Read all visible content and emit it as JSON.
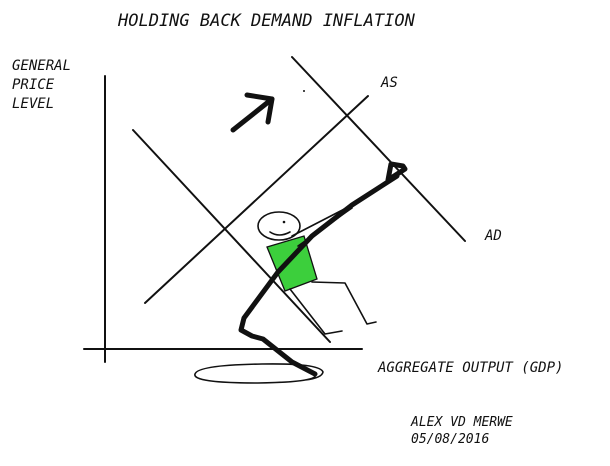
{
  "title": "HOLDING BACK DEMAND INFLATION",
  "y_axis_label": [
    "GENERAL",
    "PRICE",
    "LEVEL"
  ],
  "x_axis_label": "AGGREGATE OUTPUT (GDP)",
  "curves": {
    "supply": "AS",
    "demand": "AD"
  },
  "credit": {
    "author": "ALEX VD MERWE",
    "date": "05/08/2016"
  },
  "colors": {
    "ink": "#111111",
    "shirt": "#3ccf3c"
  }
}
